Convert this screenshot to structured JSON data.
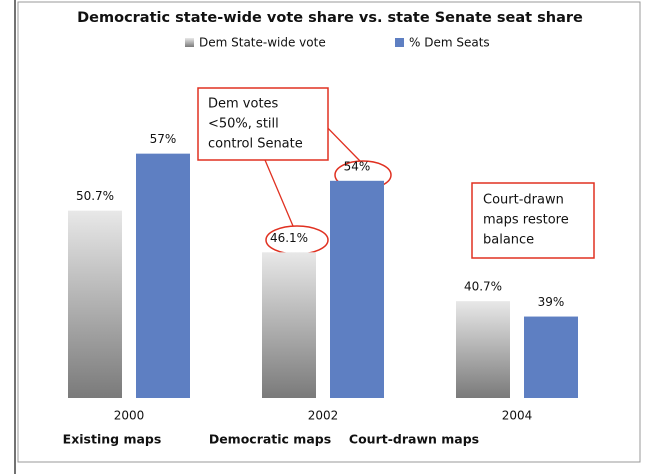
{
  "chart_data": {
    "type": "bar",
    "title": "Democratic state-wide vote share vs. state Senate seat share",
    "categories": [
      "2000",
      "2002",
      "2004"
    ],
    "group_labels": [
      "Existing maps",
      "Democratic maps",
      "Court-drawn maps"
    ],
    "series": [
      {
        "name": "Dem State-wide vote",
        "color": "#b4b4b4",
        "values": [
          50.7,
          46.1,
          40.7
        ],
        "value_labels": [
          "50.7%",
          "46.1%",
          "40.7%"
        ]
      },
      {
        "name": "% Dem Seats",
        "color": "#5e7fc2",
        "values": [
          57,
          54,
          39
        ],
        "value_labels": [
          "57%",
          "54%",
          "39%"
        ]
      }
    ],
    "ylim": [
      30,
      60
    ],
    "annotations": [
      {
        "lines": [
          "Dem votes",
          "<50%, still",
          "control Senate"
        ]
      },
      {
        "lines": [
          "Court-drawn",
          "maps restore",
          "balance"
        ]
      }
    ]
  }
}
